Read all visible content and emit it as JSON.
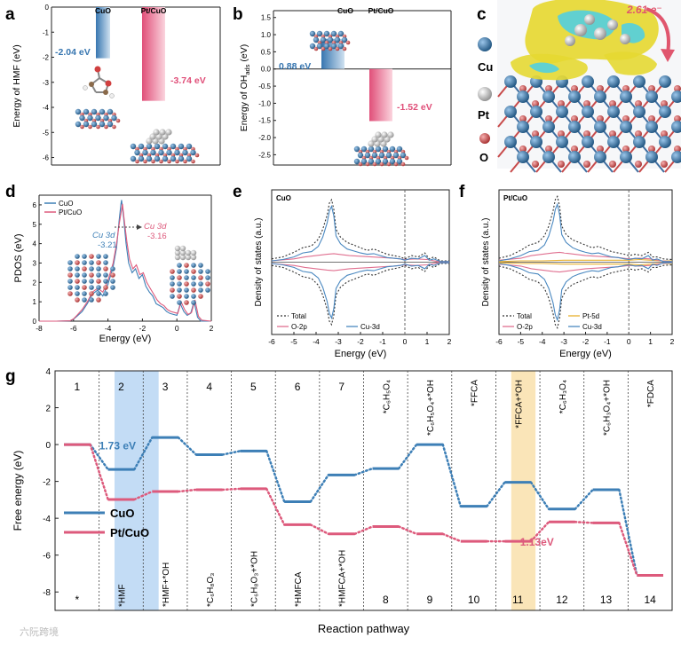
{
  "colors": {
    "cuo": "#3d7fb6",
    "ptcuo": "#dd5a7c",
    "cuo_bar_dark": "#3776b0",
    "cuo_bar_light": "#cfe1f0",
    "pt_bar_dark": "#e04f79",
    "pt_bar_light": "#fbd4de",
    "total": "#333333",
    "o2p": "#e07090",
    "cu3d": "#4a88c0",
    "pt5d": "#e8b12e",
    "ts1_band": "#b9d6f3",
    "ts2_band": "#f9e2b0",
    "cu_atom": "#2f6ea6",
    "pt_atom": "#c8c8c8",
    "o_atom": "#cf4d4d",
    "isosurface_yellow": "#e6d832",
    "isosurface_cyan": "#5ad0d8"
  },
  "panels": {
    "a": {
      "label": "a"
    },
    "b": {
      "label": "b"
    },
    "c": {
      "label": "c"
    },
    "d": {
      "label": "d"
    },
    "e": {
      "label": "e"
    },
    "f": {
      "label": "f"
    },
    "g": {
      "label": "g"
    }
  },
  "panel_c": {
    "charge": "2.61 e⁻",
    "legend": [
      {
        "symbol": "Cu",
        "atom": "cu"
      },
      {
        "symbol": "Pt",
        "atom": "pt"
      },
      {
        "symbol": "O",
        "atom": "o"
      }
    ]
  },
  "panel_d_annot": {
    "cuo_title": "Cu 3d",
    "cuo_value": "-3.21",
    "pt_title": "Cu 3d",
    "pt_value": "-3.16"
  },
  "watermark": {
    "text": "六阮跨境"
  },
  "chart_data": [
    {
      "id": "a",
      "type": "bar",
      "ylabel": "Energy of HMF (eV)",
      "ylim": [
        -6.3,
        0
      ],
      "yticks": [
        0,
        -1,
        -2,
        -3,
        -4,
        -5,
        -6
      ],
      "categories": [
        "CuO",
        "Pt/CuO"
      ],
      "values": [
        -2.04,
        -3.74
      ],
      "data_labels": [
        "-2.04 eV",
        "-3.74 eV"
      ]
    },
    {
      "id": "b",
      "type": "bar",
      "ylabel": "Energy of OH",
      "ylabel_sub": "ads",
      "ylabel_tail": " (eV)",
      "ylim": [
        -2.8,
        1.7
      ],
      "yticks": [
        1.5,
        1.0,
        0.5,
        0.0,
        -0.5,
        -1.0,
        -1.5,
        -2.0,
        -2.5
      ],
      "categories": [
        "CuO",
        "Pt/CuO"
      ],
      "values": [
        0.88,
        -1.52
      ],
      "data_labels": [
        "0.88 eV",
        "-1.52  eV"
      ]
    },
    {
      "id": "d",
      "type": "line",
      "xlabel": "Energy (eV)",
      "ylabel": "PDOS (eV)",
      "xlim": [
        -8,
        2
      ],
      "ylim": [
        0,
        6.5
      ],
      "xticks": [
        -8,
        -6,
        -4,
        -2,
        0,
        2
      ],
      "yticks": [
        0,
        1,
        2,
        3,
        4,
        5,
        6
      ],
      "legend": [
        "CuO",
        "Pt/CuO"
      ],
      "series": [
        {
          "name": "CuO",
          "x": [
            -8,
            -7,
            -6.2,
            -6,
            -5.8,
            -5.5,
            -5.2,
            -4.9,
            -4.6,
            -4.3,
            -4.0,
            -3.7,
            -3.5,
            -3.35,
            -3.25,
            -3.21,
            -3.1,
            -2.95,
            -2.8,
            -2.6,
            -2.4,
            -2.2,
            -2.0,
            -1.8,
            -1.6,
            -1.4,
            -1.2,
            -1.0,
            -0.8,
            -0.6,
            -0.4,
            -0.2,
            0,
            0.2,
            0.4,
            0.6,
            0.8,
            1.0,
            1.2,
            1.4,
            2
          ],
          "values": [
            0,
            0,
            0.02,
            0.1,
            0.25,
            0.5,
            0.9,
            1.4,
            1.6,
            1.3,
            1.9,
            2.8,
            3.8,
            5.2,
            6.0,
            6.25,
            5.4,
            4.0,
            3.0,
            2.5,
            2.7,
            2.2,
            2.4,
            1.8,
            1.5,
            1.3,
            0.9,
            0.8,
            0.7,
            0.5,
            0.4,
            0.35,
            0.3,
            0.9,
            0.5,
            0.3,
            0.4,
            1.0,
            0.2,
            0,
            0
          ]
        },
        {
          "name": "Pt/CuO",
          "x": [
            -8,
            -7,
            -6.2,
            -6,
            -5.8,
            -5.5,
            -5.2,
            -4.9,
            -4.6,
            -4.3,
            -4.0,
            -3.7,
            -3.5,
            -3.35,
            -3.2,
            -3.16,
            -3.05,
            -2.9,
            -2.75,
            -2.55,
            -2.35,
            -2.15,
            -1.95,
            -1.75,
            -1.55,
            -1.35,
            -1.15,
            -0.95,
            -0.75,
            -0.55,
            -0.35,
            -0.15,
            0.05,
            0.25,
            0.45,
            0.65,
            0.85,
            1.05,
            1.25,
            1.45,
            2
          ],
          "values": [
            0,
            0,
            0.02,
            0.12,
            0.3,
            0.6,
            1.0,
            1.5,
            1.7,
            1.5,
            2.1,
            3.0,
            4.0,
            5.0,
            5.8,
            6.05,
            5.2,
            4.1,
            3.2,
            2.7,
            2.9,
            2.4,
            2.5,
            2.0,
            1.7,
            1.4,
            1.1,
            0.9,
            0.8,
            0.6,
            0.5,
            0.45,
            0.4,
            1.0,
            0.6,
            0.35,
            0.45,
            1.1,
            0.25,
            0.05,
            0
          ]
        }
      ]
    },
    {
      "id": "e",
      "type": "line",
      "title": "CuO",
      "xlabel": "Energy (eV)",
      "ylabel": "Density of states (a.u.)",
      "xlim": [
        -6,
        2
      ],
      "ylim": [
        -1.1,
        1.1
      ],
      "xticks": [
        -6,
        -5,
        -4,
        -3,
        -2,
        -1,
        0,
        1,
        2
      ],
      "legend": [
        "Total",
        "O-2p",
        "Cu-3d"
      ],
      "series": [
        {
          "name": "Total",
          "x": [
            -6,
            -5.5,
            -5,
            -4.6,
            -4.2,
            -3.9,
            -3.7,
            -3.5,
            -3.4,
            -3.3,
            -3.2,
            -3.1,
            -2.9,
            -2.6,
            -2.3,
            -2.0,
            -1.7,
            -1.4,
            -1.1,
            -0.8,
            -0.5,
            -0.2,
            0,
            0.3,
            0.6,
            0.9,
            1.1,
            1.3,
            1.6,
            2
          ],
          "values": [
            0.05,
            0.08,
            0.15,
            0.22,
            0.25,
            0.35,
            0.5,
            0.72,
            0.9,
            0.95,
            0.8,
            0.5,
            0.38,
            0.3,
            0.26,
            0.22,
            0.18,
            0.2,
            0.16,
            0.12,
            0.1,
            0.08,
            0.05,
            0.1,
            0.08,
            0.14,
            0.05,
            0.08,
            0.02,
            0.02
          ]
        },
        {
          "name": "O-2p",
          "x": [
            -6,
            -5,
            -4.5,
            -4,
            -3.5,
            -3.2,
            -3,
            -2.5,
            -2,
            -1.5,
            -1,
            -0.5,
            0,
            0.5,
            1,
            1.5,
            2
          ],
          "values": [
            0.02,
            0.05,
            0.08,
            0.1,
            0.12,
            0.13,
            0.12,
            0.1,
            0.09,
            0.08,
            0.07,
            0.06,
            0.04,
            0.05,
            0.04,
            0.01,
            0.01
          ]
        },
        {
          "name": "Cu-3d",
          "x": [
            -6,
            -5.5,
            -5,
            -4.6,
            -4.2,
            -3.9,
            -3.7,
            -3.5,
            -3.4,
            -3.3,
            -3.2,
            -3.1,
            -2.9,
            -2.6,
            -2.3,
            -2.0,
            -1.7,
            -1.4,
            -1.1,
            -0.8,
            -0.5,
            -0.2,
            0,
            0.3,
            0.6,
            0.9,
            1.1,
            1.3,
            1.6,
            2
          ],
          "values": [
            0.02,
            0.04,
            0.08,
            0.14,
            0.16,
            0.24,
            0.38,
            0.6,
            0.78,
            0.85,
            0.7,
            0.4,
            0.28,
            0.2,
            0.17,
            0.14,
            0.12,
            0.13,
            0.1,
            0.07,
            0.06,
            0.05,
            0.03,
            0.06,
            0.05,
            0.1,
            0.03,
            0.05,
            0.01,
            0.01
          ]
        }
      ]
    },
    {
      "id": "f",
      "type": "line",
      "title": "Pt/CuO",
      "xlabel": "Energy (eV)",
      "ylabel": "Density of states (a.u.)",
      "xlim": [
        -6,
        2
      ],
      "ylim": [
        -1.1,
        1.1
      ],
      "xticks": [
        -6,
        -5,
        -4,
        -3,
        -2,
        -1,
        0,
        1,
        2
      ],
      "legend": [
        "Total",
        "Pt-5d",
        "O-2p",
        "Cu-3d"
      ],
      "series": [
        {
          "name": "Total",
          "x": [
            -6,
            -5.5,
            -5,
            -4.6,
            -4.2,
            -3.9,
            -3.7,
            -3.5,
            -3.4,
            -3.3,
            -3.2,
            -3.1,
            -2.9,
            -2.6,
            -2.3,
            -2.0,
            -1.7,
            -1.4,
            -1.1,
            -0.8,
            -0.5,
            -0.2,
            0,
            0.3,
            0.6,
            0.9,
            1.1,
            1.3,
            1.6,
            2
          ],
          "values": [
            0.06,
            0.1,
            0.18,
            0.26,
            0.3,
            0.4,
            0.55,
            0.78,
            0.95,
            1.0,
            0.85,
            0.55,
            0.42,
            0.34,
            0.3,
            0.26,
            0.22,
            0.24,
            0.2,
            0.16,
            0.14,
            0.12,
            0.1,
            0.12,
            0.1,
            0.15,
            0.08,
            0.08,
            0.05,
            0.04
          ]
        },
        {
          "name": "Pt-5d",
          "x": [
            -6,
            -5,
            -4,
            -3,
            -2,
            -1,
            0,
            0.5,
            1,
            1.5,
            2
          ],
          "values": [
            0.01,
            0.02,
            0.02,
            0.03,
            0.03,
            0.03,
            0.03,
            0.04,
            0.03,
            0.02,
            0.02
          ]
        },
        {
          "name": "O-2p",
          "x": [
            -6,
            -5,
            -4.5,
            -4,
            -3.5,
            -3.2,
            -3,
            -2.5,
            -2,
            -1.5,
            -1,
            -0.5,
            0,
            0.5,
            1,
            1.5,
            2
          ],
          "values": [
            0.03,
            0.06,
            0.1,
            0.12,
            0.14,
            0.15,
            0.14,
            0.12,
            0.1,
            0.09,
            0.08,
            0.07,
            0.05,
            0.06,
            0.05,
            0.02,
            0.01
          ]
        },
        {
          "name": "Cu-3d",
          "x": [
            -6,
            -5.5,
            -5,
            -4.6,
            -4.2,
            -3.9,
            -3.7,
            -3.5,
            -3.4,
            -3.3,
            -3.2,
            -3.1,
            -2.9,
            -2.6,
            -2.3,
            -2.0,
            -1.7,
            -1.4,
            -1.1,
            -0.8,
            -0.5,
            -0.2,
            0,
            0.3,
            0.6,
            0.9,
            1.1,
            1.3,
            1.6,
            2
          ],
          "values": [
            0.02,
            0.05,
            0.1,
            0.16,
            0.18,
            0.26,
            0.4,
            0.62,
            0.8,
            0.88,
            0.72,
            0.42,
            0.3,
            0.22,
            0.18,
            0.15,
            0.13,
            0.14,
            0.11,
            0.08,
            0.07,
            0.05,
            0.04,
            0.06,
            0.05,
            0.1,
            0.03,
            0.05,
            0.01,
            0.01
          ]
        }
      ]
    },
    {
      "id": "g",
      "type": "line",
      "xlabel": "Reaction pathway",
      "ylabel": "Free energy (eV)",
      "ylim": [
        -9,
        4
      ],
      "yticks": [
        4,
        2,
        0,
        -2,
        -4,
        -6,
        -8
      ],
      "legend": [
        "CuO",
        "Pt/CuO"
      ],
      "steps": [
        "1",
        "2",
        "3",
        "4",
        "5",
        "6",
        "7",
        "8",
        "9",
        "10",
        "11",
        "12",
        "13",
        "14"
      ],
      "top_labels": [
        "1",
        "2",
        "3",
        "4",
        "5",
        "6",
        "7",
        "*C₆H₅O₄",
        "*C₆H₅O₄+*OH",
        "*FFCA",
        "*FFCA+*OH",
        "*C₆H₃O₄",
        "*C₆H₃O₄+*OH",
        "*FDCA"
      ],
      "bottom_labels": [
        "*",
        "*HMF",
        "*HMF+*OH",
        "*C₆H₈O₃",
        "*C₆H₈O₃+*OH",
        "*HMFCA",
        "*HMFCA+*OH",
        "8",
        "9",
        "10",
        "11",
        "12",
        "13",
        "14"
      ],
      "series": [
        {
          "name": "CuO",
          "values": [
            0,
            -1.35,
            0.38,
            -0.55,
            -0.35,
            -3.1,
            -1.65,
            -1.3,
            0,
            -3.35,
            -2.05,
            -3.5,
            -2.45,
            -7.1
          ]
        },
        {
          "name": "Pt/CuO",
          "values": [
            0,
            -2.98,
            -2.55,
            -2.45,
            -2.4,
            -4.35,
            -4.85,
            -4.45,
            -4.85,
            -5.25,
            -5.25,
            -4.2,
            -4.25,
            -7.1
          ]
        }
      ],
      "annotations": [
        {
          "text": "1.73 eV",
          "series": "CuO"
        },
        {
          "text": "1.13eV",
          "series": "Pt/CuO"
        }
      ]
    }
  ]
}
